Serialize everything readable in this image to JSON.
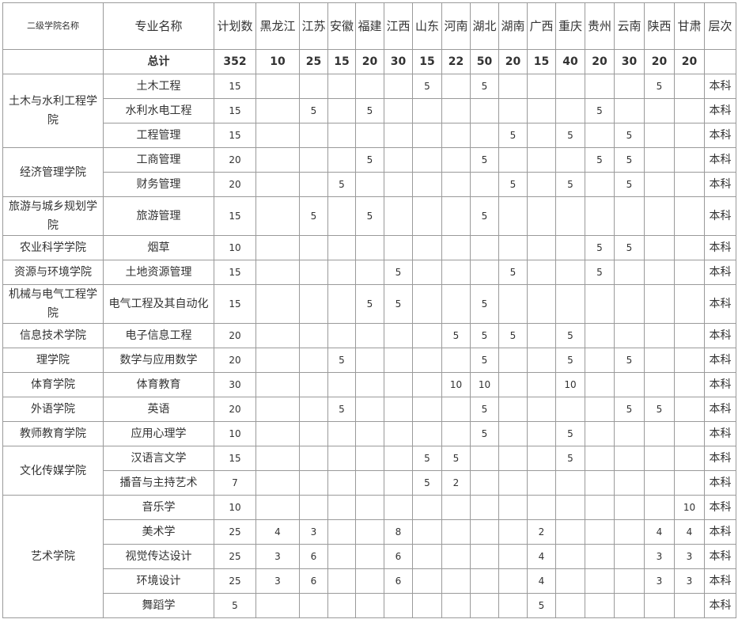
{
  "table": {
    "header": [
      "二级学院名称",
      "专业名称",
      "计划数",
      "黑龙江",
      "江苏",
      "安徽",
      "福建",
      "江西",
      "山东",
      "河南",
      "湖北",
      "湖南",
      "广西",
      "重庆",
      "贵州",
      "云南",
      "陕西",
      "甘肃",
      "层次"
    ],
    "total": {
      "label": "总计",
      "values": [
        352,
        10,
        25,
        15,
        20,
        30,
        15,
        22,
        50,
        20,
        15,
        40,
        20,
        30,
        20,
        20
      ]
    },
    "groups": [
      {
        "college": "土木与水利工程学院",
        "rows": [
          [
            "土木工程",
            15,
            null,
            null,
            null,
            null,
            null,
            5,
            null,
            5,
            null,
            null,
            null,
            null,
            null,
            5,
            null,
            "本科"
          ],
          [
            "水利水电工程",
            15,
            null,
            5,
            null,
            5,
            null,
            null,
            null,
            null,
            null,
            null,
            null,
            5,
            null,
            null,
            null,
            "本科"
          ],
          [
            "工程管理",
            15,
            null,
            null,
            null,
            null,
            null,
            null,
            null,
            null,
            5,
            null,
            5,
            null,
            5,
            null,
            null,
            "本科"
          ]
        ]
      },
      {
        "college": "经济管理学院",
        "rows": [
          [
            "工商管理",
            20,
            null,
            null,
            null,
            5,
            null,
            null,
            null,
            5,
            null,
            null,
            null,
            5,
            5,
            null,
            null,
            "本科"
          ],
          [
            "财务管理",
            20,
            null,
            null,
            5,
            null,
            null,
            null,
            null,
            null,
            5,
            null,
            5,
            null,
            5,
            null,
            null,
            "本科"
          ]
        ]
      },
      {
        "college": "旅游与城乡规划学院",
        "rows": [
          [
            "旅游管理",
            15,
            null,
            5,
            null,
            5,
            null,
            null,
            null,
            5,
            null,
            null,
            null,
            null,
            null,
            null,
            null,
            "本科"
          ]
        ]
      },
      {
        "college": "农业科学学院",
        "rows": [
          [
            "烟草",
            10,
            null,
            null,
            null,
            null,
            null,
            null,
            null,
            null,
            null,
            null,
            null,
            5,
            5,
            null,
            null,
            "本科"
          ]
        ]
      },
      {
        "college": "资源与环境学院",
        "rows": [
          [
            "土地资源管理",
            15,
            null,
            null,
            null,
            null,
            5,
            null,
            null,
            null,
            5,
            null,
            null,
            5,
            null,
            null,
            null,
            "本科"
          ]
        ]
      },
      {
        "college": "机械与电气工程学院",
        "rows": [
          [
            "电气工程及其自动化",
            15,
            null,
            null,
            null,
            5,
            5,
            null,
            null,
            5,
            null,
            null,
            null,
            null,
            null,
            null,
            null,
            "本科"
          ]
        ]
      },
      {
        "college": "信息技术学院",
        "rows": [
          [
            "电子信息工程",
            20,
            null,
            null,
            null,
            null,
            null,
            null,
            5,
            5,
            5,
            null,
            5,
            null,
            null,
            null,
            null,
            "本科"
          ]
        ]
      },
      {
        "college": "理学院",
        "rows": [
          [
            "数学与应用数学",
            20,
            null,
            null,
            5,
            null,
            null,
            null,
            null,
            5,
            null,
            null,
            5,
            null,
            5,
            null,
            null,
            "本科"
          ]
        ]
      },
      {
        "college": "体育学院",
        "rows": [
          [
            "体育教育",
            30,
            null,
            null,
            null,
            null,
            null,
            null,
            10,
            10,
            null,
            null,
            10,
            null,
            null,
            null,
            null,
            "本科"
          ]
        ]
      },
      {
        "college": "外语学院",
        "rows": [
          [
            "英语",
            20,
            null,
            null,
            5,
            null,
            null,
            null,
            null,
            5,
            null,
            null,
            null,
            null,
            5,
            5,
            null,
            "本科"
          ]
        ]
      },
      {
        "college": "教师教育学院",
        "rows": [
          [
            "应用心理学",
            10,
            null,
            null,
            null,
            null,
            null,
            null,
            null,
            5,
            null,
            null,
            5,
            null,
            null,
            null,
            null,
            "本科"
          ]
        ]
      },
      {
        "college": "文化传媒学院",
        "rows": [
          [
            "汉语言文学",
            15,
            null,
            null,
            null,
            null,
            null,
            5,
            5,
            null,
            null,
            null,
            5,
            null,
            null,
            null,
            null,
            "本科"
          ],
          [
            "播音与主持艺术",
            7,
            null,
            null,
            null,
            null,
            null,
            5,
            2,
            null,
            null,
            null,
            null,
            null,
            null,
            null,
            null,
            "本科"
          ]
        ]
      },
      {
        "college": "艺术学院",
        "rows": [
          [
            "音乐学",
            10,
            null,
            null,
            null,
            null,
            null,
            null,
            null,
            null,
            null,
            null,
            null,
            null,
            null,
            null,
            10,
            "本科"
          ],
          [
            "美术学",
            25,
            4,
            3,
            null,
            null,
            8,
            null,
            null,
            null,
            null,
            2,
            null,
            null,
            null,
            4,
            4,
            "本科"
          ],
          [
            "视觉传达设计",
            25,
            3,
            6,
            null,
            null,
            6,
            null,
            null,
            null,
            null,
            4,
            null,
            null,
            null,
            3,
            3,
            "本科"
          ],
          [
            "环境设计",
            25,
            3,
            6,
            null,
            null,
            6,
            null,
            null,
            null,
            null,
            4,
            null,
            null,
            null,
            3,
            3,
            "本科"
          ],
          [
            "舞蹈学",
            5,
            null,
            null,
            null,
            null,
            null,
            null,
            null,
            null,
            null,
            5,
            null,
            null,
            null,
            null,
            null,
            "本科"
          ]
        ]
      }
    ]
  }
}
